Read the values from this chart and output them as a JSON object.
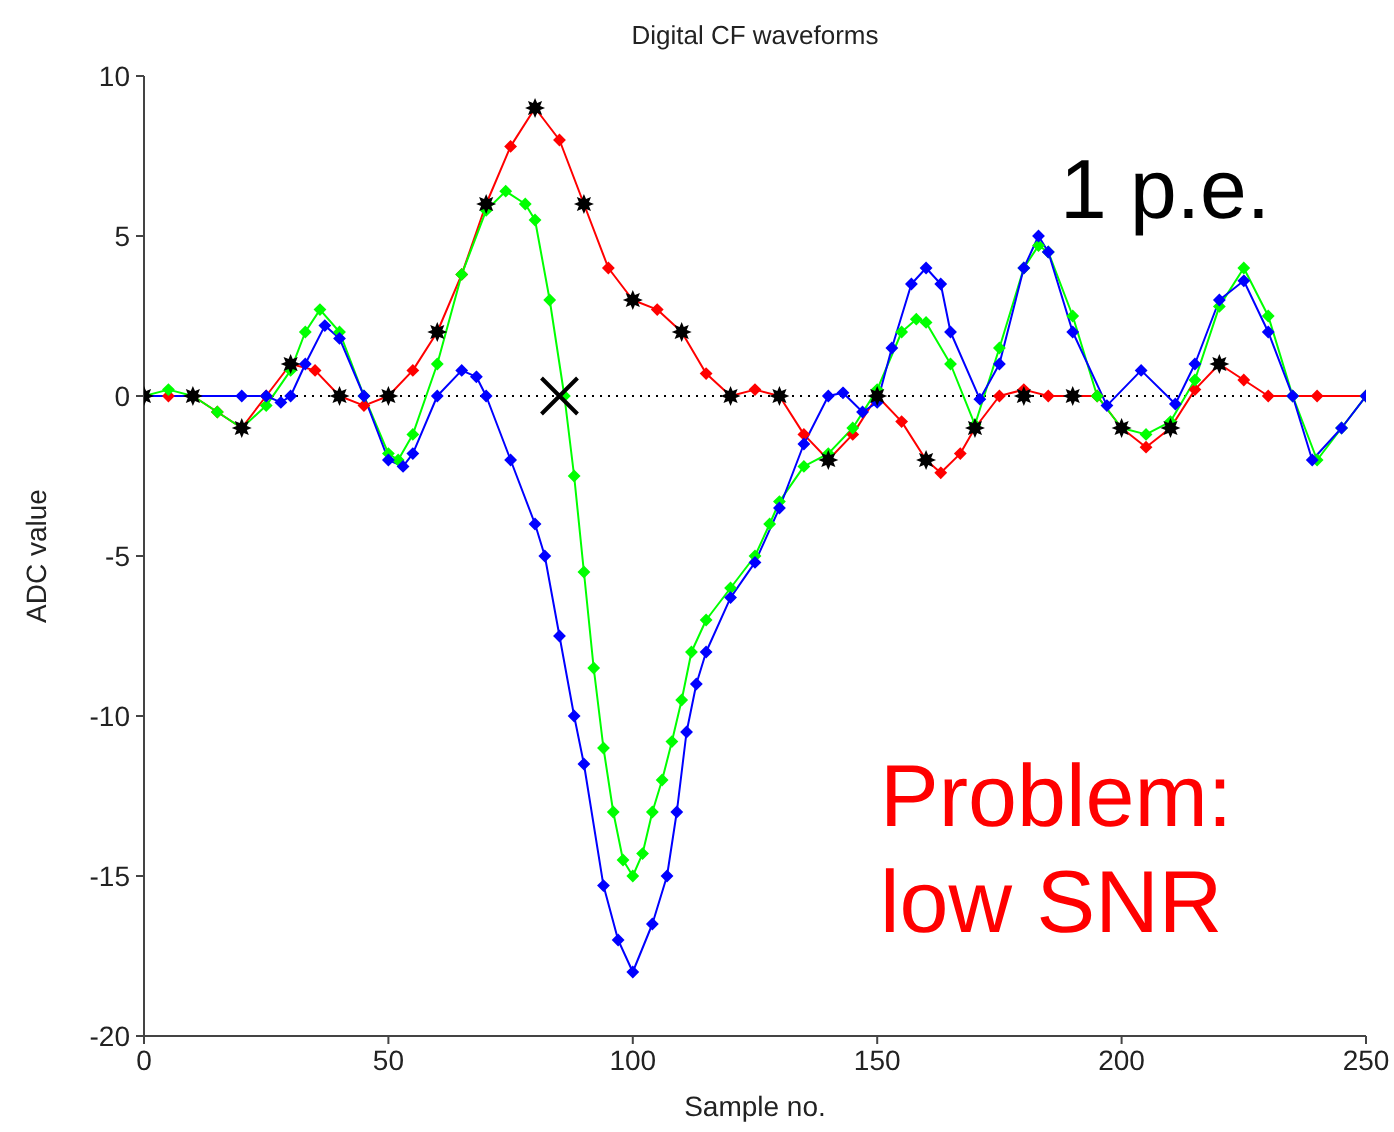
{
  "chart_data": {
    "type": "line",
    "title": "Digital CF waveforms",
    "xlabel": "Sample no.",
    "ylabel": "ADC value",
    "xlim": [
      0,
      250
    ],
    "xticks": [
      0,
      50,
      100,
      150,
      200,
      250
    ],
    "ylim": [
      -20,
      10
    ],
    "yticks": [
      -20,
      -15,
      -10,
      -5,
      0,
      5,
      10
    ],
    "ref_lines": [
      {
        "axis": "y",
        "value": 0,
        "color": "#000000",
        "line_style": "dotted"
      }
    ],
    "annotations": [
      "1 p.e.",
      "Problem: low SNR"
    ],
    "series": [
      {
        "color": "#ff0000",
        "marker": "diamond",
        "x": [
          0,
          5,
          10,
          15,
          20,
          25,
          30,
          35,
          40,
          45,
          50,
          55,
          60,
          65,
          70,
          75,
          80,
          85,
          90,
          95,
          100,
          105,
          110,
          115,
          120,
          125,
          130,
          135,
          140,
          145,
          150,
          155,
          160,
          163,
          167,
          170,
          175,
          180,
          185,
          190,
          195,
          200,
          205,
          210,
          215,
          220,
          225,
          230,
          240,
          250
        ],
        "values": [
          0,
          0,
          0,
          -0.5,
          -1,
          0,
          1,
          0.8,
          0,
          -0.3,
          0,
          0.8,
          2,
          3.8,
          6,
          7.8,
          9,
          8,
          6,
          4,
          3,
          2.7,
          2,
          0.7,
          0,
          0.2,
          0,
          -1.2,
          -2,
          -1.2,
          0,
          -0.8,
          -2,
          -2.4,
          -1.8,
          -1,
          0,
          0.2,
          0,
          0,
          0,
          -1,
          -1.6,
          -1,
          0.2,
          1,
          0.5,
          0,
          0,
          0
        ]
      },
      {
        "color": "#00ff00",
        "marker": "diamond",
        "x": [
          0,
          5,
          10,
          15,
          20,
          25,
          30,
          33,
          36,
          40,
          45,
          50,
          52,
          55,
          60,
          65,
          70,
          74,
          78,
          80,
          83,
          86,
          88,
          90,
          92,
          94,
          96,
          98,
          100,
          102,
          104,
          106,
          108,
          110,
          112,
          115,
          120,
          125,
          128,
          130,
          135,
          140,
          145,
          150,
          155,
          158,
          160,
          165,
          170,
          175,
          180,
          183,
          185,
          190,
          195,
          200,
          205,
          210,
          215,
          220,
          225,
          230,
          235,
          240,
          245,
          250
        ],
        "values": [
          0,
          0.2,
          0,
          -0.5,
          -1,
          -0.3,
          0.8,
          2,
          2.7,
          2,
          0,
          -1.8,
          -2,
          -1.2,
          1,
          3.8,
          5.8,
          6.4,
          6,
          5.5,
          3,
          0,
          -2.5,
          -5.5,
          -8.5,
          -11,
          -13,
          -14.5,
          -15,
          -14.3,
          -13,
          -12,
          -10.8,
          -9.5,
          -8,
          -7,
          -6,
          -5,
          -4,
          -3.3,
          -2.2,
          -1.8,
          -1,
          0.2,
          2,
          2.4,
          2.3,
          1,
          -0.9,
          1.5,
          4,
          4.7,
          4.5,
          2.5,
          0,
          -1,
          -1.2,
          -0.8,
          0.5,
          2.8,
          4,
          2.5,
          0,
          -2,
          -1,
          0
        ]
      },
      {
        "color": "#0000ff",
        "marker": "diamond",
        "x": [
          0,
          10,
          20,
          25,
          28,
          30,
          33,
          37,
          40,
          45,
          50,
          53,
          55,
          60,
          65,
          68,
          70,
          75,
          80,
          82,
          85,
          88,
          90,
          94,
          97,
          100,
          104,
          107,
          109,
          111,
          113,
          115,
          120,
          125,
          130,
          135,
          140,
          143,
          147,
          150,
          153,
          157,
          160,
          163,
          165,
          171,
          175,
          180,
          183,
          185,
          190,
          197,
          204,
          211,
          215,
          220,
          225,
          230,
          235,
          239,
          245,
          250
        ],
        "values": [
          0,
          0,
          0,
          0,
          -0.2,
          0,
          1,
          2.2,
          1.8,
          0,
          -2,
          -2.2,
          -1.8,
          0,
          0.8,
          0.6,
          0,
          -2,
          -4,
          -5,
          -7.5,
          -10,
          -11.5,
          -15.3,
          -17,
          -18,
          -16.5,
          -15,
          -13,
          -10.5,
          -9,
          -8,
          -6.3,
          -5.2,
          -3.5,
          -1.5,
          0,
          0.1,
          -0.5,
          -0.2,
          1.5,
          3.5,
          4,
          3.5,
          2,
          -0.1,
          1,
          4,
          5,
          4.5,
          2,
          -0.3,
          0.8,
          -0.25,
          1,
          3,
          3.6,
          2,
          0,
          -2,
          -1,
          0
        ]
      },
      {
        "type": "scatter",
        "color": "#000000",
        "marker": "star",
        "x": [
          0,
          10,
          20,
          30,
          40,
          50,
          60,
          70,
          80,
          90,
          100,
          110,
          120,
          130,
          140,
          150,
          160,
          170,
          180,
          190,
          200,
          210,
          220
        ],
        "values": [
          0,
          0,
          -1,
          1,
          0,
          0,
          2,
          6,
          9,
          6,
          3,
          2,
          0,
          0,
          -2,
          0,
          -2,
          -1,
          0,
          0,
          -1,
          -1,
          1
        ]
      },
      {
        "type": "scatter",
        "color": "#000000",
        "marker": "cross",
        "x": [
          85
        ],
        "values": [
          0
        ]
      }
    ]
  }
}
